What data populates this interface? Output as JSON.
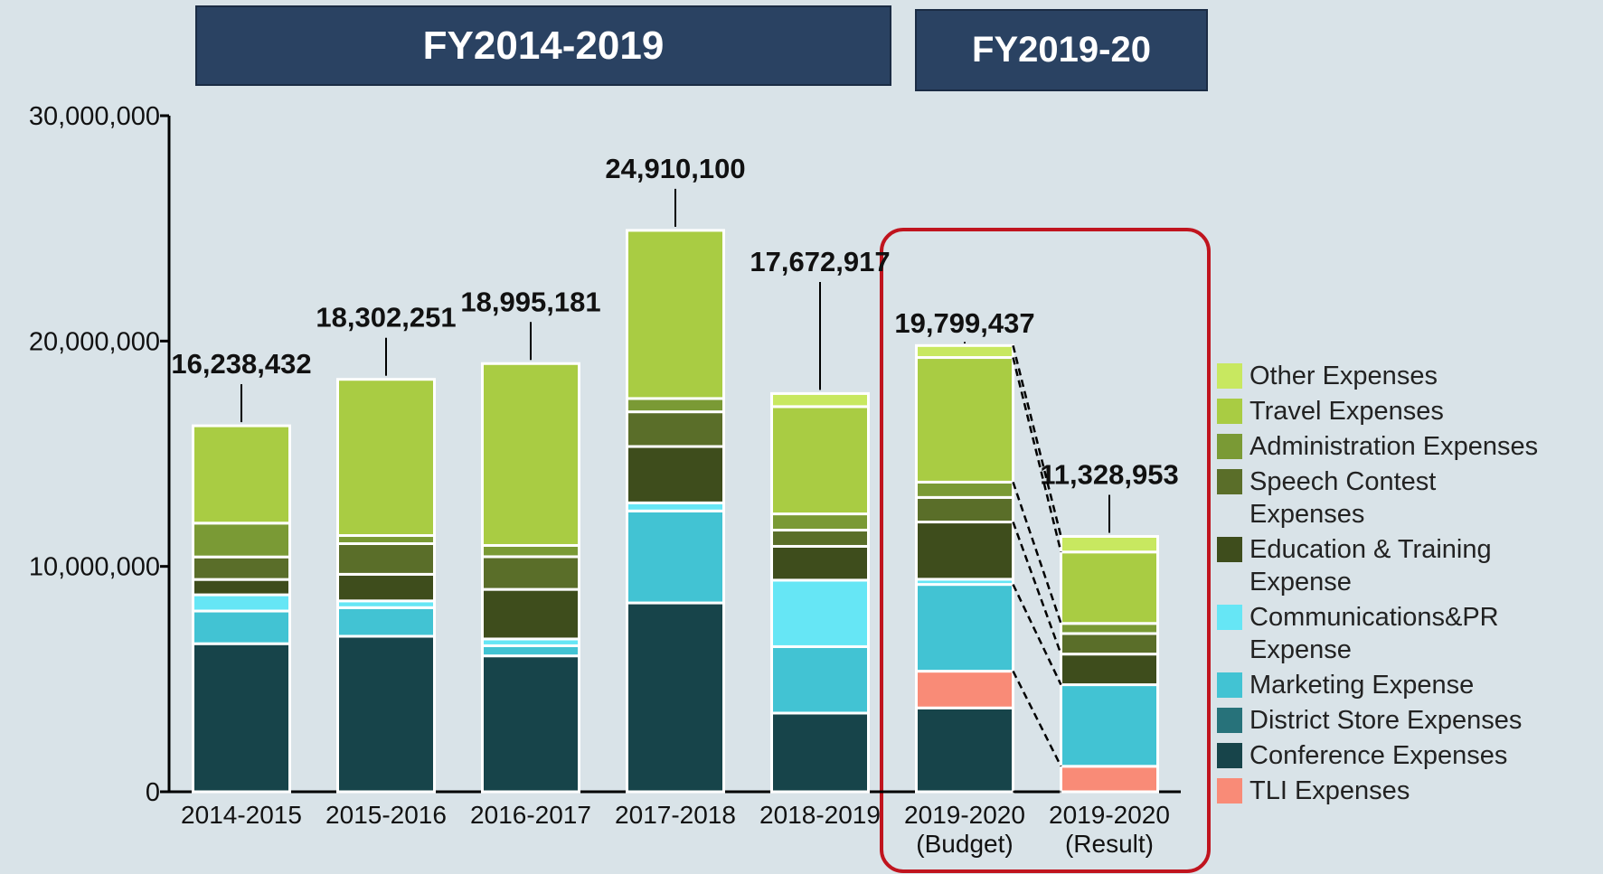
{
  "chart_data": {
    "type": "bar",
    "stacked": true,
    "headers": [
      "FY2014-2019",
      "FY2019-20"
    ],
    "categories": [
      "2014-2015",
      "2015-2016",
      "2016-2017",
      "2017-2018",
      "2018-2019",
      "2019-2020\n(Budget)",
      "2019-2020\n(Result)"
    ],
    "series": [
      {
        "name": "Conference Expenses",
        "color": "#17444a",
        "values": [
          6570000,
          6900000,
          6030000,
          8380000,
          3490000,
          3720000,
          0
        ]
      },
      {
        "name": "TLI Expenses",
        "color": "#f98b77",
        "values": [
          0,
          0,
          0,
          0,
          0,
          1630000,
          1130000
        ]
      },
      {
        "name": "District Store Expenses",
        "color": "#27727a",
        "values": [
          0,
          0,
          0,
          0,
          0,
          0,
          0
        ]
      },
      {
        "name": "Marketing Expense",
        "color": "#42c3d3",
        "values": [
          1450000,
          1270000,
          450000,
          4080000,
          2950000,
          3850000,
          3620000
        ]
      },
      {
        "name": "Communications&PR Expense",
        "color": "#66e6f5",
        "values": [
          720000,
          300000,
          300000,
          360000,
          2950000,
          230000,
          0
        ]
      },
      {
        "name": "Education & Training Expense",
        "color": "#3e4d1c",
        "values": [
          680000,
          1180000,
          2200000,
          2500000,
          1500000,
          2540000,
          1360000
        ]
      },
      {
        "name": "Speech Contest Expenses",
        "color": "#5a6e29",
        "values": [
          1000000,
          1360000,
          1450000,
          1540000,
          720000,
          1090000,
          910000
        ]
      },
      {
        "name": "Administration Expenses",
        "color": "#7a9a35",
        "values": [
          1500000,
          360000,
          500000,
          590000,
          720000,
          680000,
          450000
        ]
      },
      {
        "name": "Travel Expenses",
        "color": "#a9cc43",
        "values": [
          4320000,
          6930000,
          8070000,
          7460000,
          4760000,
          5530000,
          3170000
        ]
      },
      {
        "name": "Other Expenses",
        "color": "#c8e860",
        "values": [
          0,
          0,
          0,
          0,
          580000,
          530000,
          690000
        ]
      }
    ],
    "totals": [
      16238432,
      18302251,
      18995181,
      24910100,
      17672917,
      19799437,
      11328953
    ],
    "total_labels": [
      "16,238,432",
      "18,302,251",
      "18,995,181",
      "24,910,100",
      "17,672,917",
      "19,799,437",
      "11,328,953"
    ],
    "ylim": [
      0,
      30000000
    ],
    "yticks": [
      0,
      {
        "value": 10000000,
        "label": "10,000,000"
      },
      {
        "value": 20000000,
        "label": "20,000,000"
      },
      {
        "value": 30000000,
        "label": "30,000,000"
      }
    ]
  }
}
